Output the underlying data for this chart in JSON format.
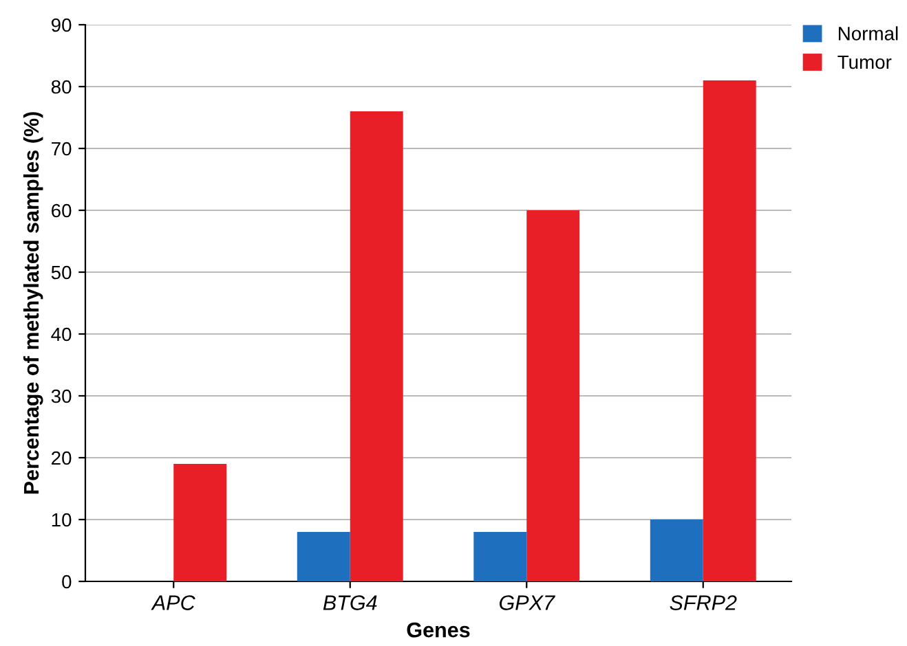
{
  "chart_data": {
    "type": "bar",
    "xlabel": "Genes",
    "ylabel": "Percentage of methylated samples (%)",
    "categories": [
      "APC",
      "BTG4",
      "GPX7",
      "SFRP2"
    ],
    "series": [
      {
        "name": "Normal",
        "color": "#1f6fbf",
        "values": [
          0,
          8,
          8,
          10
        ]
      },
      {
        "name": "Tumor",
        "color": "#e81f26",
        "values": [
          19,
          76,
          60,
          81
        ]
      }
    ],
    "ylim": [
      0,
      90
    ],
    "yticks": [
      0,
      10,
      20,
      30,
      40,
      50,
      60,
      70,
      80,
      90
    ],
    "grid": "y",
    "legend": "top right"
  }
}
